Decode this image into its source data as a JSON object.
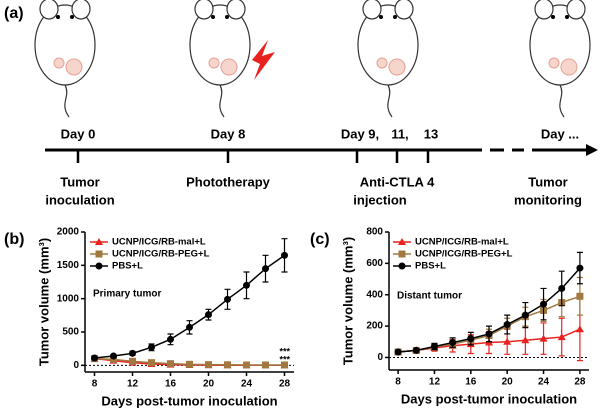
{
  "timeline": {
    "panel_label": "(a)",
    "days": [
      "Day 0",
      "Day 8",
      "Day 9,",
      "11,",
      "13",
      "Day ..."
    ],
    "events": [
      "Tumor",
      "inoculation",
      "Phototherapy",
      "Anti-CTLA 4",
      "injection",
      "Tumor",
      "monitoring"
    ]
  },
  "chart_data": [
    {
      "type": "line",
      "panel_label": "(b)",
      "annotation": "Primary tumor",
      "significance": [
        "***",
        "***"
      ],
      "x_label": "Days post-tumor inoculation",
      "y_label": "Tumor volume (mm³)",
      "x": [
        8,
        10,
        12,
        14,
        16,
        18,
        20,
        22,
        24,
        26,
        28
      ],
      "xlim": [
        7,
        29
      ],
      "xticks": [
        8,
        12,
        16,
        20,
        24,
        28
      ],
      "ylim": [
        -100,
        2000
      ],
      "yticks": [
        0,
        500,
        1000,
        1500,
        2000
      ],
      "series": [
        {
          "name": "UCNP/ICG/RB-mal+L",
          "color": "#e8231f",
          "marker": "triangle",
          "values": [
            100,
            70,
            40,
            20,
            10,
            5,
            3,
            2,
            2,
            2,
            2
          ],
          "errors": [
            15,
            10,
            8,
            5,
            4,
            3,
            2,
            2,
            2,
            2,
            2
          ]
        },
        {
          "name": "UCNP/ICG/RB-PEG+L",
          "color": "#a07840",
          "marker": "square",
          "values": [
            100,
            90,
            60,
            40,
            25,
            15,
            10,
            8,
            5,
            5,
            5
          ],
          "errors": [
            15,
            12,
            10,
            8,
            6,
            5,
            4,
            3,
            3,
            3,
            3
          ]
        },
        {
          "name": "PBS+L",
          "color": "#000000",
          "marker": "circle",
          "values": [
            110,
            140,
            180,
            270,
            390,
            570,
            760,
            990,
            1200,
            1450,
            1650
          ],
          "errors": [
            20,
            20,
            30,
            50,
            80,
            100,
            80,
            150,
            200,
            200,
            250
          ]
        }
      ]
    },
    {
      "type": "line",
      "panel_label": "(c)",
      "annotation": "Distant tumor",
      "x_label": "Days post-tumor inoculation",
      "y_label": "Tumor volume (mm³)",
      "x": [
        8,
        10,
        12,
        14,
        16,
        18,
        20,
        22,
        24,
        26,
        28
      ],
      "xlim": [
        7,
        29
      ],
      "xticks": [
        8,
        12,
        16,
        20,
        24,
        28
      ],
      "ylim": [
        -80,
        800
      ],
      "yticks": [
        0,
        200,
        400,
        600,
        800
      ],
      "series": [
        {
          "name": "UCNP/ICG/RB-mal+L",
          "color": "#e8231f",
          "marker": "triangle",
          "values": [
            35,
            45,
            60,
            75,
            85,
            95,
            100,
            110,
            120,
            130,
            180
          ],
          "errors": [
            5,
            10,
            20,
            40,
            60,
            70,
            80,
            90,
            100,
            120,
            200
          ]
        },
        {
          "name": "UCNP/ICG/RB-PEG+L",
          "color": "#a07840",
          "marker": "square",
          "values": [
            35,
            45,
            65,
            85,
            110,
            140,
            200,
            260,
            300,
            350,
            390
          ],
          "errors": [
            5,
            10,
            15,
            25,
            30,
            40,
            50,
            60,
            70,
            90,
            120
          ]
        },
        {
          "name": "PBS+L",
          "color": "#000000",
          "marker": "circle",
          "values": [
            35,
            45,
            70,
            95,
            120,
            150,
            210,
            270,
            340,
            440,
            570
          ],
          "errors": [
            5,
            10,
            20,
            30,
            40,
            50,
            60,
            80,
            100,
            110,
            100
          ]
        }
      ]
    }
  ]
}
